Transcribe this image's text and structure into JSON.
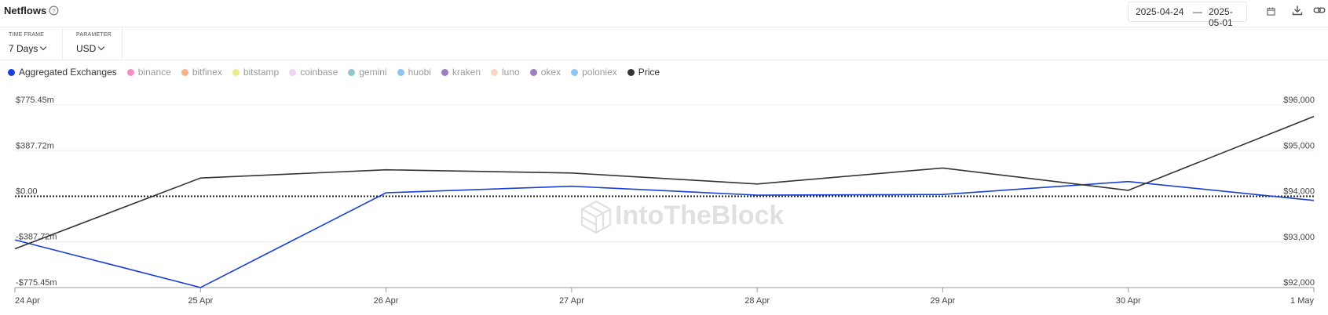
{
  "header": {
    "title": "Netflows",
    "date_start": "2025-04-24",
    "date_separator": "—",
    "date_end": "2025-05-01"
  },
  "controls": {
    "time_frame": {
      "label": "TIME FRAME",
      "value": "7 Days"
    },
    "parameter": {
      "label": "PARAMETER",
      "value": "USD"
    }
  },
  "legend": [
    {
      "label": "Aggregated Exchanges",
      "color": "#1a3fd6",
      "active": true
    },
    {
      "label": "binance",
      "color": "#f48fc4",
      "active": false
    },
    {
      "label": "bitfinex",
      "color": "#f7b48a",
      "active": false
    },
    {
      "label": "bitstamp",
      "color": "#eeea8a",
      "active": false
    },
    {
      "label": "coinbase",
      "color": "#f0d3f0",
      "active": false
    },
    {
      "label": "gemini",
      "color": "#8ec7c4",
      "active": false
    },
    {
      "label": "huobi",
      "color": "#8cc4f0",
      "active": false
    },
    {
      "label": "kraken",
      "color": "#a07cc0",
      "active": false
    },
    {
      "label": "luno",
      "color": "#f6d9c0",
      "active": false
    },
    {
      "label": "okex",
      "color": "#a07cc0",
      "active": false
    },
    {
      "label": "poloniex",
      "color": "#8cc8f2",
      "active": false
    },
    {
      "label": "Price",
      "color": "#333333",
      "active": true
    }
  ],
  "watermark": "IntoTheBlock",
  "chart_data": {
    "type": "line",
    "categories": [
      "24 Apr",
      "25 Apr",
      "26 Apr",
      "27 Apr",
      "28 Apr",
      "29 Apr",
      "30 Apr",
      "1 May"
    ],
    "y_left": {
      "ticks": [
        775.45,
        387.72,
        0,
        -387.72,
        -775.45
      ],
      "tick_labels": [
        "$775.45m",
        "$387.72m",
        "$0.00",
        "-$387.72m",
        "-$775.45m"
      ],
      "range": [
        -775.45,
        775.45
      ]
    },
    "y_right": {
      "ticks": [
        96000,
        95000,
        94000,
        93000,
        92000
      ],
      "tick_labels": [
        "$96,000",
        "$95,000",
        "$94,000",
        "$93,000",
        "$92,000"
      ],
      "range": [
        92000,
        96000
      ]
    },
    "series": [
      {
        "name": "Aggregated Exchanges",
        "axis": "left",
        "color": "#1a3fd6",
        "values": [
          -370,
          -775,
          30,
          85,
          10,
          15,
          125,
          -35
        ]
      },
      {
        "name": "Price",
        "axis": "right",
        "color": "#333333",
        "values": [
          92850,
          94400,
          94580,
          94510,
          94270,
          94620,
          94130,
          95750
        ]
      }
    ],
    "zero_line": "dotted",
    "grid": true
  }
}
